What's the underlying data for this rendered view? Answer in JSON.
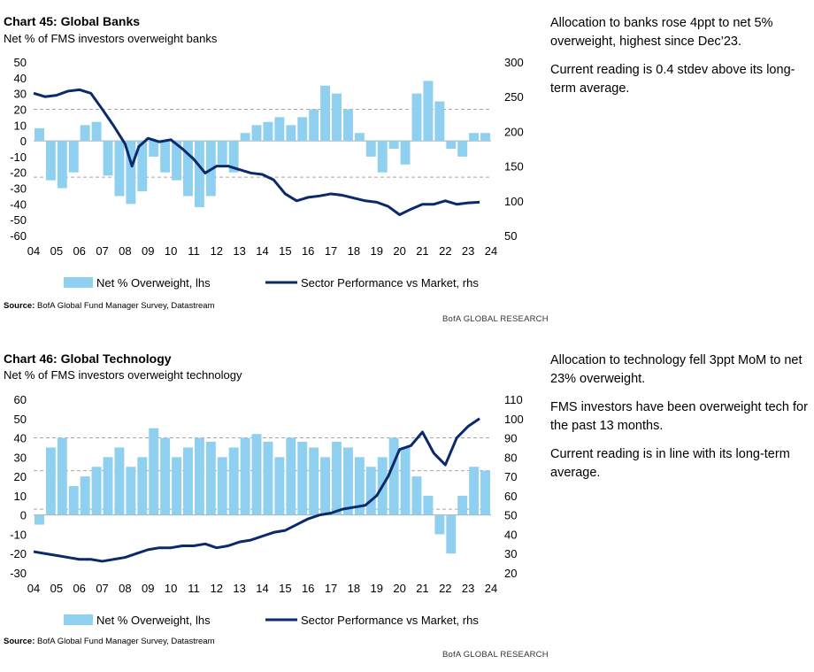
{
  "chart_data": [
    {
      "type": "bar",
      "title": "Chart 45: Global Banks",
      "subtitle": "Net % of FMS investors overweight banks",
      "x_ticks": [
        "04",
        "05",
        "06",
        "07",
        "08",
        "09",
        "10",
        "11",
        "12",
        "13",
        "14",
        "15",
        "16",
        "17",
        "18",
        "19",
        "20",
        "21",
        "22",
        "23",
        "24"
      ],
      "y_left_ticks": [
        50,
        40,
        30,
        20,
        10,
        0,
        -10,
        -20,
        -30,
        -40,
        -50,
        -60
      ],
      "y_left_range": [
        -60,
        50
      ],
      "y_right_ticks": [
        300,
        250,
        200,
        150,
        100,
        50
      ],
      "y_right_range": [
        50,
        300
      ],
      "reference_lines_lhs": [
        20,
        -23
      ],
      "series": [
        {
          "name": "Net % Overweight, lhs",
          "type": "bar",
          "color": "#8fd0f0",
          "x": [
            2004.0,
            2004.5,
            2005.0,
            2005.5,
            2006.0,
            2006.5,
            2007.0,
            2007.5,
            2008.0,
            2008.5,
            2009.0,
            2009.5,
            2010.0,
            2010.5,
            2011.0,
            2011.5,
            2012.0,
            2012.5,
            2013.0,
            2013.5,
            2014.0,
            2014.5,
            2015.0,
            2015.5,
            2016.0,
            2016.5,
            2017.0,
            2017.5,
            2018.0,
            2018.5,
            2019.0,
            2019.5,
            2020.0,
            2020.5,
            2021.0,
            2021.5,
            2022.0,
            2022.5,
            2023.0,
            2023.5
          ],
          "values": [
            8,
            -25,
            -30,
            -20,
            10,
            12,
            -22,
            -35,
            -40,
            -32,
            -10,
            -20,
            -25,
            -35,
            -42,
            -35,
            -15,
            -20,
            5,
            10,
            12,
            15,
            10,
            15,
            20,
            35,
            30,
            20,
            5,
            -10,
            -20,
            -5,
            -15,
            30,
            38,
            25,
            -5,
            -10,
            5,
            5
          ]
        },
        {
          "name": "Sector Performance vs Market, rhs",
          "type": "line",
          "color": "#0a2a6b",
          "x": [
            2004.0,
            2004.5,
            2005.0,
            2005.5,
            2006.0,
            2006.5,
            2007.0,
            2007.5,
            2008.0,
            2008.3,
            2008.6,
            2009.0,
            2009.5,
            2010.0,
            2010.5,
            2011.0,
            2011.5,
            2012.0,
            2012.5,
            2013.0,
            2013.5,
            2014.0,
            2014.5,
            2015.0,
            2015.5,
            2016.0,
            2016.5,
            2017.0,
            2017.5,
            2018.0,
            2018.5,
            2019.0,
            2019.5,
            2020.0,
            2020.5,
            2021.0,
            2021.5,
            2022.0,
            2022.5,
            2023.0,
            2023.5
          ],
          "values": [
            255,
            250,
            252,
            258,
            260,
            255,
            232,
            208,
            182,
            150,
            178,
            190,
            185,
            188,
            175,
            160,
            140,
            150,
            150,
            145,
            140,
            138,
            130,
            110,
            100,
            105,
            107,
            110,
            108,
            104,
            100,
            98,
            92,
            80,
            88,
            95,
            95,
            100,
            95,
            97,
            98
          ]
        }
      ],
      "legend": "bottom"
    },
    {
      "type": "bar",
      "title": "Chart 46: Global Technology",
      "subtitle": "Net % of FMS investors overweight technology",
      "x_ticks": [
        "04",
        "05",
        "06",
        "07",
        "08",
        "09",
        "10",
        "11",
        "12",
        "13",
        "14",
        "15",
        "16",
        "17",
        "18",
        "19",
        "20",
        "21",
        "22",
        "23",
        "24"
      ],
      "y_left_ticks": [
        60,
        50,
        40,
        30,
        20,
        10,
        0,
        -10,
        -20,
        -30
      ],
      "y_left_range": [
        -30,
        60
      ],
      "y_right_ticks": [
        110,
        100,
        90,
        80,
        70,
        60,
        50,
        40,
        30,
        20
      ],
      "y_right_range": [
        20,
        110
      ],
      "reference_lines_lhs": [
        40,
        23,
        3
      ],
      "series": [
        {
          "name": "Net % Overweight, lhs",
          "type": "bar",
          "color": "#8fd0f0",
          "x": [
            2004.0,
            2004.5,
            2005.0,
            2005.5,
            2006.0,
            2006.5,
            2007.0,
            2007.5,
            2008.0,
            2008.5,
            2009.0,
            2009.5,
            2010.0,
            2010.5,
            2011.0,
            2011.5,
            2012.0,
            2012.5,
            2013.0,
            2013.5,
            2014.0,
            2014.5,
            2015.0,
            2015.5,
            2016.0,
            2016.5,
            2017.0,
            2017.5,
            2018.0,
            2018.5,
            2019.0,
            2019.5,
            2020.0,
            2020.5,
            2021.0,
            2021.5,
            2022.0,
            2022.5,
            2023.0,
            2023.5
          ],
          "values": [
            -5,
            35,
            40,
            15,
            20,
            25,
            30,
            35,
            25,
            30,
            45,
            40,
            30,
            35,
            40,
            38,
            30,
            35,
            40,
            42,
            38,
            30,
            40,
            38,
            35,
            30,
            38,
            35,
            30,
            25,
            30,
            40,
            35,
            20,
            10,
            -10,
            -20,
            10,
            25,
            23
          ]
        },
        {
          "name": "Sector Performance vs Market, rhs",
          "type": "line",
          "color": "#0a2a6b",
          "x": [
            2004.0,
            2004.5,
            2005.0,
            2005.5,
            2006.0,
            2006.5,
            2007.0,
            2007.5,
            2008.0,
            2008.5,
            2009.0,
            2009.5,
            2010.0,
            2010.5,
            2011.0,
            2011.5,
            2012.0,
            2012.5,
            2013.0,
            2013.5,
            2014.0,
            2014.5,
            2015.0,
            2015.5,
            2016.0,
            2016.5,
            2017.0,
            2017.5,
            2018.0,
            2018.5,
            2019.0,
            2019.5,
            2020.0,
            2020.5,
            2021.0,
            2021.5,
            2022.0,
            2022.5,
            2023.0,
            2023.5
          ],
          "values": [
            31,
            30,
            29,
            28,
            27,
            27,
            26,
            27,
            28,
            30,
            32,
            33,
            33,
            34,
            34,
            35,
            33,
            34,
            36,
            37,
            39,
            41,
            42,
            45,
            48,
            50,
            51,
            53,
            54,
            55,
            60,
            70,
            84,
            86,
            93,
            82,
            76,
            90,
            96,
            100
          ]
        }
      ],
      "legend": "bottom"
    }
  ],
  "legend_labels": {
    "bar": "Net % Overweight, lhs",
    "line": "Sector Performance vs Market, rhs"
  },
  "colors": {
    "bar": "#8fd0f0",
    "line": "#0a2a6b",
    "ref": "#a6a6a6"
  },
  "panels": [
    {
      "title": "Chart 45: Global Banks",
      "subtitle": "Net % of FMS investors overweight banks",
      "source_label": "Source:",
      "source_text": " BofA Global Fund Manager Survey, Datastream",
      "brand": "BofA GLOBAL RESEARCH",
      "commentary": [
        "Allocation to banks rose 4ppt to net 5% overweight, highest since Dec’23.",
        "Current reading is 0.4 stdev above its long-term average."
      ]
    },
    {
      "title": "Chart 46: Global Technology",
      "subtitle": "Net % of FMS investors overweight technology",
      "source_label": "Source:",
      "source_text": " BofA Global Fund Manager Survey, Datastream",
      "brand": "BofA GLOBAL RESEARCH",
      "commentary": [
        "Allocation to technology fell 3ppt MoM to net 23% overweight.",
        "FMS investors have been overweight tech for the past 13 months.",
        "Current reading is in line with its long-term average."
      ]
    }
  ]
}
